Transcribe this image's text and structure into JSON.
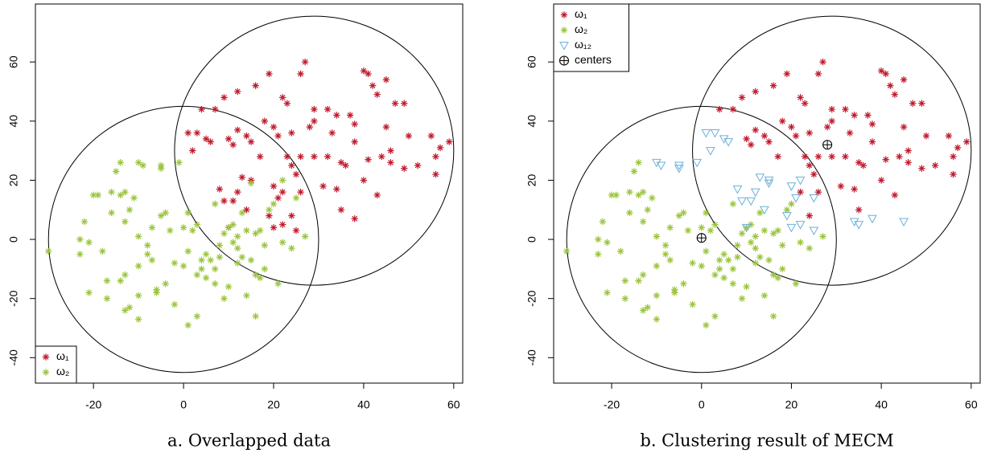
{
  "chart_data": [
    {
      "type": "scatter",
      "title": "a. Overlapped data",
      "xlim": [
        -32.9,
        62
      ],
      "ylim": [
        -48.6,
        79.6
      ],
      "xticks": [
        -20,
        0,
        20,
        40,
        60
      ],
      "yticks": [
        -40,
        -20,
        0,
        20,
        40,
        60
      ],
      "legend": "bottomleft",
      "ellipses": [
        {
          "cx": 0,
          "cy": 0,
          "rx": 30,
          "ry": 45
        },
        {
          "cx": 29,
          "cy": 30,
          "rx": 31,
          "ry": 45.5
        }
      ],
      "series": [
        {
          "name": "ω₁",
          "color": "#c0182a",
          "marker": "asterisk",
          "x": [
            27,
            26,
            19,
            16,
            22,
            12,
            9,
            7,
            4,
            3,
            1,
            2,
            5,
            6,
            10,
            12,
            14,
            11,
            15,
            20,
            18,
            23,
            24,
            21,
            28,
            29,
            32,
            29,
            33,
            35,
            36,
            38,
            38,
            37,
            40,
            41,
            42,
            43,
            45,
            47,
            45,
            49,
            50,
            46,
            46,
            49,
            52,
            55,
            57,
            59,
            56,
            56,
            44,
            40,
            41,
            43,
            34,
            32,
            34,
            35,
            38,
            31,
            29,
            26,
            25,
            24,
            23,
            26,
            24,
            25,
            22,
            20,
            19,
            21,
            22,
            20,
            15,
            13,
            12,
            11,
            8,
            9,
            14,
            10,
            17
          ],
          "y": [
            60,
            56,
            56,
            52,
            48,
            50,
            48,
            44,
            44,
            36,
            36,
            30,
            34,
            33,
            34,
            37,
            35,
            32,
            33,
            38,
            40,
            46,
            36,
            35,
            38,
            44,
            44,
            40,
            36,
            26,
            25,
            33,
            39,
            42,
            57,
            56,
            52,
            49,
            54,
            46,
            38,
            46,
            35,
            30,
            26,
            24,
            25,
            35,
            31,
            33,
            28,
            22,
            28,
            20,
            27,
            15,
            42,
            28,
            17,
            10,
            7,
            18,
            28,
            28,
            22,
            25,
            28,
            16,
            8,
            3,
            5,
            4,
            8,
            14,
            16,
            18,
            20,
            21,
            16,
            13,
            17,
            13,
            10,
            4,
            28
          ]
        },
        {
          "name": "ω₂",
          "color": "#9ac43c",
          "marker": "asterisk",
          "x": [
            -30,
            -22,
            -20,
            -19,
            -23,
            -21,
            -23,
            -21,
            -17,
            -17,
            -16,
            -16,
            -14,
            -15,
            -14,
            -13,
            -12,
            -13,
            -13,
            -14,
            -12,
            -13,
            -10,
            -10,
            -10,
            -10,
            -11,
            -10,
            -9,
            -8,
            -7,
            -5,
            -5,
            -6,
            -6,
            -5,
            -4,
            -4,
            -2,
            -2,
            -1,
            0,
            0,
            1,
            1,
            1,
            2,
            3,
            4,
            5,
            4,
            3,
            5,
            6,
            7,
            8,
            8,
            9,
            10,
            11,
            11,
            12,
            12,
            13,
            10,
            9,
            12,
            14,
            15,
            16,
            17,
            18,
            16,
            17,
            18,
            19,
            20,
            21,
            22,
            24,
            27,
            25,
            22,
            16,
            14,
            7,
            3,
            -3,
            -7,
            -8,
            -18,
            7,
            13,
            15
          ],
          "y": [
            -4,
            6,
            15,
            15,
            0,
            -1,
            -5,
            -18,
            -20,
            -14,
            9,
            16,
            15,
            23,
            26,
            16,
            10,
            6,
            -12,
            -14,
            -23,
            -24,
            -27,
            -19,
            -9,
            1,
            14,
            26,
            25,
            -5,
            -7,
            24,
            25,
            -17,
            -18,
            8,
            9,
            -15,
            -8,
            -22,
            26,
            -9,
            4,
            -4,
            9,
            -29,
            3,
            -26,
            -7,
            -5,
            -10,
            -12,
            -13,
            -7,
            -10,
            -2,
            -6,
            2,
            4,
            5,
            -1,
            -8,
            -3,
            -6,
            -16,
            -20,
            1,
            3,
            -7,
            -12,
            -13,
            -10,
            2,
            3,
            -2,
            10,
            12,
            -15,
            -1,
            -3,
            1,
            14,
            20,
            -26,
            -19,
            -15,
            5,
            3,
            4,
            -2,
            -4,
            12,
            9,
            19
          ]
        }
      ]
    },
    {
      "type": "scatter",
      "title": "b. Clustering result of MECM",
      "xlim": [
        -32.9,
        62
      ],
      "ylim": [
        -48.6,
        79.6
      ],
      "xticks": [
        -20,
        0,
        20,
        40,
        60
      ],
      "yticks": [
        -40,
        -20,
        0,
        20,
        40,
        60
      ],
      "legend": "topleft",
      "ellipses": [
        {
          "cx": 0,
          "cy": 0,
          "rx": 30,
          "ry": 45
        },
        {
          "cx": 29,
          "cy": 30,
          "rx": 31,
          "ry": 45.5
        }
      ],
      "series": [
        {
          "name": "ω₁",
          "color": "#c0182a",
          "marker": "asterisk",
          "x": [
            27,
            26,
            19,
            16,
            22,
            12,
            9,
            7,
            4,
            10,
            12,
            14,
            11,
            15,
            20,
            18,
            23,
            24,
            21,
            28,
            29,
            32,
            29,
            33,
            35,
            36,
            38,
            38,
            37,
            40,
            41,
            42,
            43,
            45,
            47,
            45,
            49,
            50,
            46,
            46,
            49,
            52,
            55,
            57,
            59,
            56,
            56,
            44,
            40,
            41,
            43,
            34,
            32,
            34,
            35,
            31,
            29,
            26,
            25,
            24,
            23,
            26,
            24,
            22,
            17
          ],
          "y": [
            60,
            56,
            56,
            52,
            48,
            50,
            48,
            44,
            44,
            34,
            37,
            35,
            32,
            33,
            38,
            40,
            46,
            36,
            35,
            38,
            44,
            44,
            40,
            36,
            26,
            25,
            33,
            39,
            42,
            57,
            56,
            52,
            49,
            54,
            46,
            38,
            46,
            35,
            30,
            26,
            24,
            25,
            35,
            31,
            33,
            28,
            22,
            28,
            20,
            27,
            15,
            42,
            28,
            17,
            10,
            18,
            28,
            28,
            22,
            25,
            28,
            16,
            8,
            16,
            28
          ]
        },
        {
          "name": "ω₂",
          "color": "#9ac43c",
          "marker": "asterisk",
          "x": [
            -30,
            -22,
            -20,
            -19,
            -23,
            -21,
            -23,
            -21,
            -17,
            -17,
            -16,
            -16,
            -14,
            -15,
            -14,
            -13,
            -12,
            -13,
            -13,
            -14,
            -12,
            -13,
            -10,
            -10,
            -10,
            -10,
            -11,
            -8,
            -7,
            -6,
            -6,
            -5,
            -4,
            -4,
            -2,
            -2,
            0,
            0,
            1,
            1,
            1,
            2,
            3,
            4,
            5,
            4,
            3,
            5,
            6,
            7,
            8,
            8,
            9,
            10,
            11,
            11,
            12,
            12,
            13,
            10,
            9,
            12,
            14,
            15,
            16,
            17,
            18,
            16,
            17,
            18,
            19,
            20,
            21,
            22,
            24,
            27,
            16,
            14,
            7,
            3,
            -3,
            -7,
            -8,
            -18,
            7,
            13
          ],
          "y": [
            -4,
            6,
            15,
            15,
            0,
            -1,
            -5,
            -18,
            -20,
            -14,
            9,
            16,
            15,
            23,
            26,
            16,
            10,
            6,
            -12,
            -14,
            -23,
            -24,
            -27,
            -19,
            -9,
            1,
            14,
            -5,
            -7,
            -17,
            -18,
            8,
            9,
            -15,
            -8,
            -22,
            -9,
            4,
            -4,
            9,
            -29,
            3,
            -26,
            -7,
            -5,
            -10,
            -12,
            -13,
            -7,
            -10,
            -2,
            -6,
            2,
            4,
            5,
            -1,
            -8,
            -3,
            -6,
            -16,
            -20,
            1,
            3,
            -7,
            -12,
            -13,
            -10,
            2,
            3,
            -2,
            10,
            12,
            -15,
            -1,
            -3,
            1,
            -26,
            -19,
            -15,
            5,
            3,
            4,
            -2,
            -4,
            12,
            9
          ]
        },
        {
          "name": "ω₁₂",
          "color": "#6ab0d8",
          "marker": "triangle",
          "x": [
            3,
            1,
            2,
            5,
            6,
            38,
            25,
            22,
            20,
            19,
            21,
            20,
            15,
            13,
            12,
            11,
            8,
            9,
            14,
            10,
            -10,
            -9,
            -5,
            -5,
            -1,
            25,
            22,
            15,
            34,
            45,
            35
          ],
          "y": [
            36,
            36,
            30,
            34,
            33,
            7,
            3,
            5,
            4,
            8,
            14,
            18,
            20,
            21,
            16,
            13,
            17,
            13,
            10,
            4,
            26,
            25,
            24,
            25,
            26,
            14,
            20,
            19,
            6,
            6,
            5
          ]
        },
        {
          "name": "centers",
          "color": "#000000",
          "marker": "circleplus",
          "x": [
            0,
            28
          ],
          "y": [
            0.5,
            32
          ]
        }
      ]
    }
  ]
}
